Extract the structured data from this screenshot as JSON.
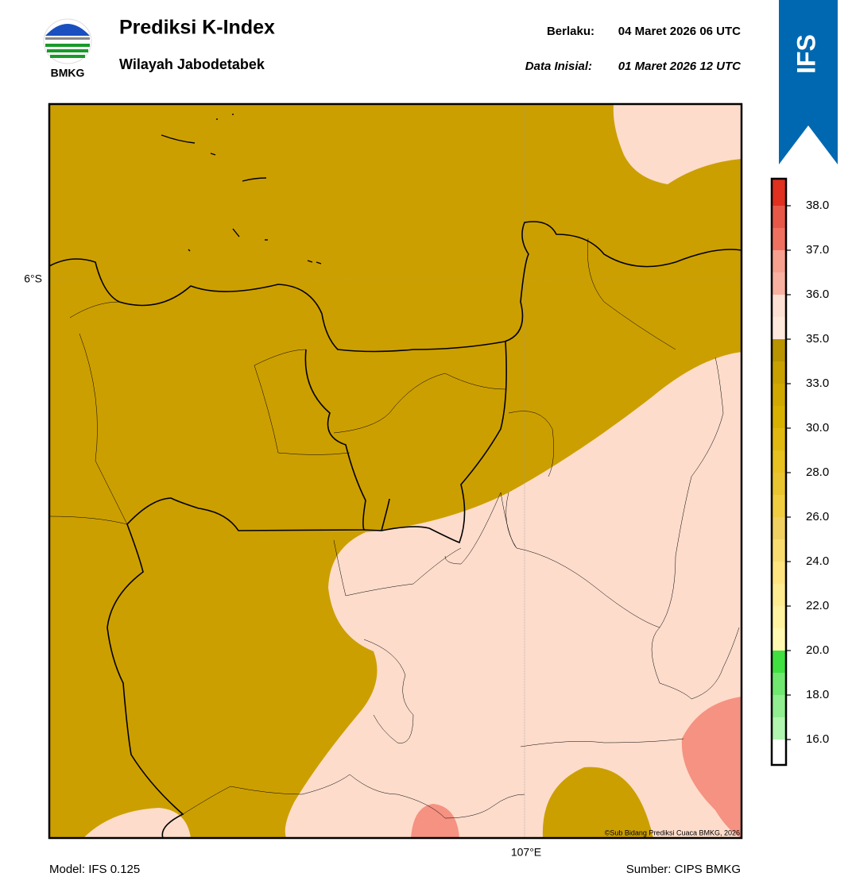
{
  "header": {
    "logo_text": "BMKG",
    "title": "Prediksi K-Index",
    "subtitle": "Wilayah Jabodetabek",
    "valid_label": "Berlaku:",
    "valid_time": "04 Maret 2026 06 UTC",
    "init_label": "Data Inisial:",
    "init_time": "01 Maret 2026 12 UTC",
    "badge": "IFS"
  },
  "map": {
    "lat_label": "6°S",
    "lon_label": "107°E",
    "credit": "©Sub Bidang Prediksi Cuaca BMKG, 2026"
  },
  "colorbar": {
    "ticks": [
      {
        "value": 16,
        "label": "16.0"
      },
      {
        "value": 18,
        "label": "18.0"
      },
      {
        "value": 20,
        "label": "20.0"
      },
      {
        "value": 22,
        "label": "22.0"
      },
      {
        "value": 24,
        "label": "24.0"
      },
      {
        "value": 26,
        "label": "26.0"
      },
      {
        "value": 28,
        "label": "28.0"
      },
      {
        "value": 30,
        "label": "30.0"
      },
      {
        "value": 33,
        "label": "33.0"
      },
      {
        "value": 35,
        "label": "35.0"
      },
      {
        "value": 36,
        "label": "36.0"
      },
      {
        "value": 37,
        "label": "37.0"
      },
      {
        "value": 38,
        "label": "38.0"
      }
    ],
    "colors": [
      "#ffffff",
      "#b0f5b0",
      "#90ee90",
      "#70e870",
      "#40e040",
      "#fff8b0",
      "#fff3a0",
      "#ffeb90",
      "#ffe480",
      "#f8dc70",
      "#f0d060",
      "#f0cc40",
      "#e8c430",
      "#e8c020",
      "#e0b810",
      "#d8b000",
      "#d0a800",
      "#c8a000",
      "#b89400",
      "#ffe8dc",
      "#fde0d4",
      "#f8b0a0",
      "#f7a090",
      "#f07060",
      "#e85848",
      "#e03020"
    ]
  },
  "footer": {
    "model": "Model: IFS 0.125",
    "source": "Sumber: CIPS BMKG"
  }
}
